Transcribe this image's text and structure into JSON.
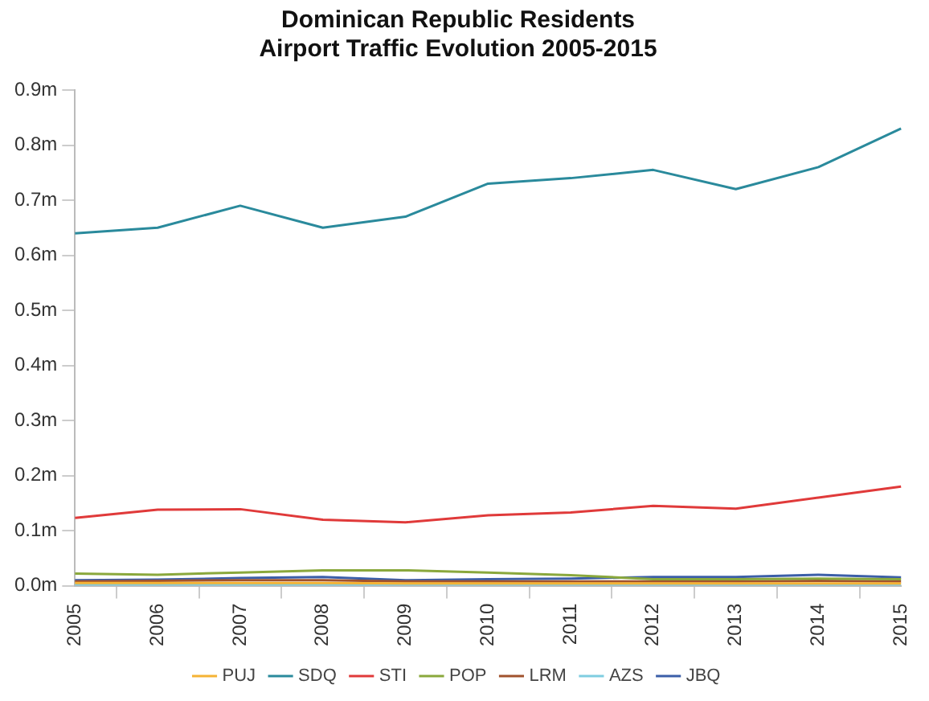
{
  "chart_data": {
    "type": "line",
    "title": "Dominican Republic Residents\nAirport Traffic Evolution 2005-2015",
    "categories": [
      "2005",
      "2006",
      "2007",
      "2008",
      "2009",
      "2010",
      "2011",
      "2012",
      "2013",
      "2014",
      "2015"
    ],
    "series": [
      {
        "name": "PUJ",
        "color": "#f5b335",
        "values": [
          0.005,
          0.005,
          0.005,
          0.005,
          0.004,
          0.004,
          0.004,
          0.004,
          0.004,
          0.004,
          0.004
        ]
      },
      {
        "name": "SDQ",
        "color": "#2a8a9c",
        "values": [
          0.64,
          0.65,
          0.69,
          0.65,
          0.67,
          0.73,
          0.74,
          0.755,
          0.72,
          0.76,
          0.83
        ]
      },
      {
        "name": "STI",
        "color": "#e03a3a",
        "values": [
          0.123,
          0.138,
          0.139,
          0.12,
          0.115,
          0.128,
          0.133,
          0.145,
          0.14,
          0.16,
          0.18
        ]
      },
      {
        "name": "POP",
        "color": "#8aa83c",
        "values": [
          0.022,
          0.02,
          0.024,
          0.028,
          0.028,
          0.024,
          0.019,
          0.012,
          0.012,
          0.013,
          0.012
        ]
      },
      {
        "name": "LRM",
        "color": "#a0522d",
        "values": [
          0.008,
          0.009,
          0.01,
          0.01,
          0.008,
          0.008,
          0.008,
          0.008,
          0.008,
          0.009,
          0.008
        ]
      },
      {
        "name": "AZS",
        "color": "#7fcde0",
        "values": [
          0.002,
          0.002,
          0.002,
          0.002,
          0.002,
          0.002,
          0.002,
          0.002,
          0.002,
          0.002,
          0.002
        ]
      },
      {
        "name": "JBQ",
        "color": "#3b5ea8",
        "values": [
          0.01,
          0.011,
          0.014,
          0.016,
          0.01,
          0.012,
          0.013,
          0.016,
          0.016,
          0.02,
          0.015
        ]
      }
    ],
    "ylim": [
      0,
      0.9
    ],
    "yticks": [
      {
        "value": 0,
        "label": "0.0m"
      },
      {
        "value": 0.1,
        "label": "0.1m"
      },
      {
        "value": 0.2,
        "label": "0.2m"
      },
      {
        "value": 0.3,
        "label": "0.3m"
      },
      {
        "value": 0.4,
        "label": "0.4m"
      },
      {
        "value": 0.5,
        "label": "0.5m"
      },
      {
        "value": 0.6,
        "label": "0.6m"
      },
      {
        "value": 0.7,
        "label": "0.7m"
      },
      {
        "value": 0.8,
        "label": "0.8m"
      },
      {
        "value": 0.9,
        "label": "0.9m"
      }
    ],
    "grid": false,
    "legend": "bottom",
    "marker": "none",
    "line_style": "solid"
  }
}
